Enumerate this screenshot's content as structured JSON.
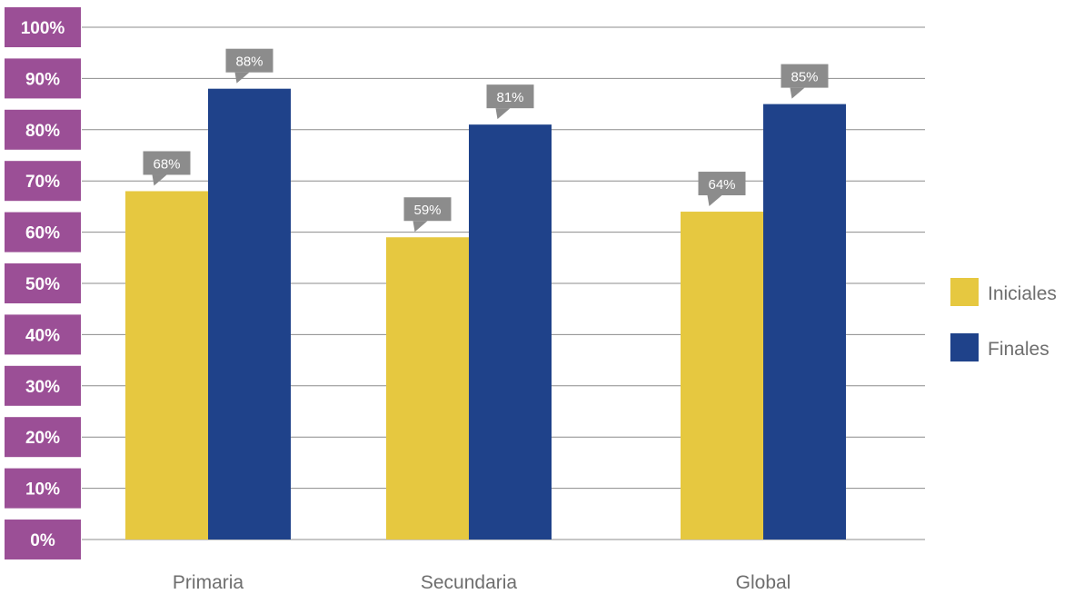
{
  "chart_data": {
    "type": "bar",
    "categories": [
      "Primaria",
      "Secundaria",
      "Global"
    ],
    "series": [
      {
        "name": "Iniciales",
        "values": [
          68,
          59,
          64
        ],
        "labels": [
          "68%",
          "59%",
          "64%"
        ],
        "color": "#E6C840"
      },
      {
        "name": "Finales",
        "values": [
          88,
          81,
          85
        ],
        "labels": [
          "88%",
          "81%",
          "85%"
        ],
        "color": "#1F428A"
      }
    ],
    "y_ticks": [
      "0%",
      "10%",
      "20%",
      "30%",
      "40%",
      "50%",
      "60%",
      "70%",
      "80%",
      "90%",
      "100%"
    ],
    "ylim": [
      0,
      100
    ],
    "grid": true,
    "legend_position": "right",
    "colors": {
      "tick_label_bg": "#9B4F96",
      "gridline": "#8C8C8C",
      "data_label_bg": "#8C8C8C",
      "category_text": "#6E6E6E"
    }
  }
}
